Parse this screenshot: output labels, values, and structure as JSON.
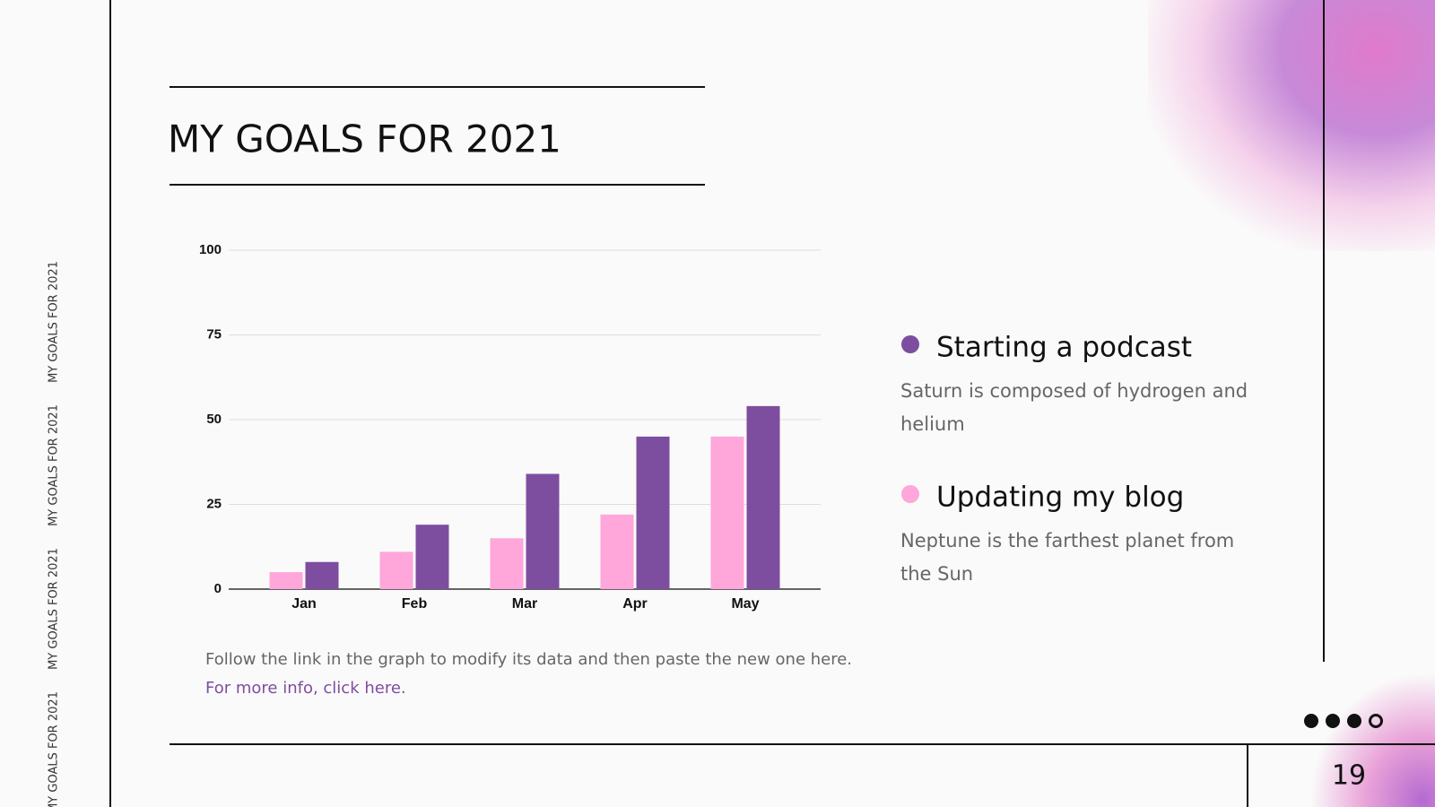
{
  "title": "MY GOALS FOR 2021",
  "side_labels": [
    "MY GOALS FOR 2021",
    "MY GOALS FOR 2021",
    "MY GOALS FOR 2021",
    "MY GOALS FOR 2021"
  ],
  "legend_descriptions": [
    "Neptune is the farthest planet from the Sun",
    "Saturn is composed of hydrogen and helium"
  ],
  "note": "Follow the link in the graph to modify its data and then paste the new one here.",
  "link": "For more info, click here",
  "link_suffix": ".",
  "page_number": "19",
  "chart_data": {
    "type": "bar",
    "categories": [
      "Jan",
      "Feb",
      "Mar",
      "Apr",
      "May"
    ],
    "series": [
      {
        "name": "Updating my blog",
        "color": "#ffa6da",
        "values": [
          5,
          11,
          15,
          22,
          45
        ]
      },
      {
        "name": "Starting a podcast",
        "color": "#7d4e9f",
        "values": [
          8,
          19,
          34,
          45,
          54
        ]
      }
    ],
    "ylim": [
      0,
      100
    ],
    "yticks": [
      0,
      25,
      50,
      75,
      100
    ],
    "grid": true
  }
}
